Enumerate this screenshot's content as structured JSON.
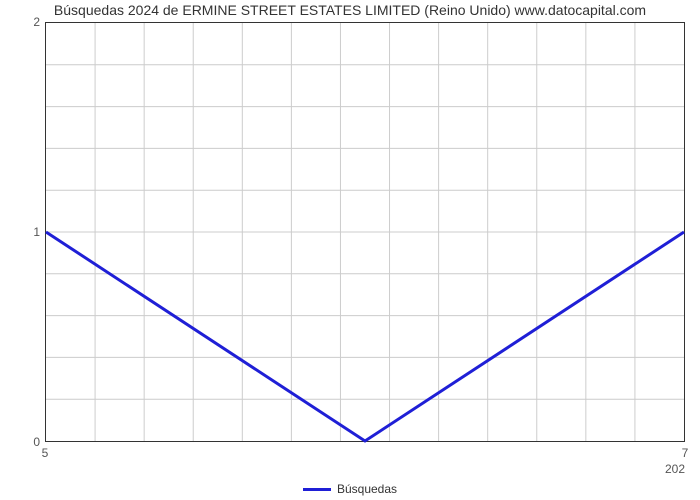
{
  "chart": {
    "type": "line",
    "title": "Búsquedas 2024 de ERMINE STREET ESTATES LIMITED (Reino Unido) www.datocapital.com",
    "title_fontsize": 14,
    "background_color": "#ffffff",
    "plot_border_color": "#333333",
    "grid_color": "#cccccc",
    "y": {
      "min": 0,
      "max": 2,
      "major_ticks": [
        0,
        1,
        2
      ],
      "minor_count_between": 4
    },
    "x": {
      "min": 5,
      "max": 7,
      "left_label": "5",
      "right_label": "7",
      "far_right_label": "202",
      "minor_count": 12
    },
    "series": {
      "label": "Búsquedas",
      "color": "#1f1fd6",
      "stroke_width": 3,
      "points": [
        {
          "x": 5,
          "y": 1
        },
        {
          "x": 6,
          "y": 0
        },
        {
          "x": 7,
          "y": 1
        }
      ]
    },
    "legend": {
      "position": "bottom-center",
      "fontsize": 12
    }
  }
}
